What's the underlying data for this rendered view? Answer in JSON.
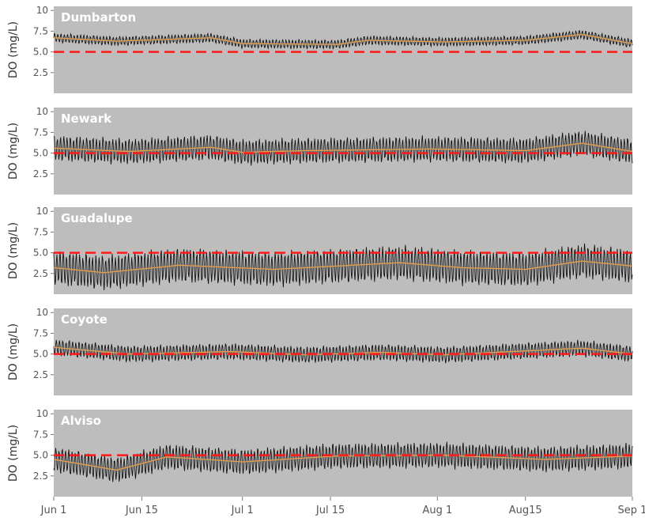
{
  "chart_data": {
    "type": "line",
    "shared_x": {
      "tick_labels": [
        "Jun 1",
        "Jun 15",
        "Jul 1",
        "Jul 15",
        "Aug 1",
        "Aug15",
        "Sep 1"
      ],
      "tick_days": [
        0,
        14,
        30,
        44,
        61,
        75,
        92
      ],
      "range_days": [
        0,
        92
      ]
    },
    "ylabel": "DO (mg/L)",
    "yticks": [
      "2.5",
      "5.0",
      "7.5",
      "10"
    ],
    "ylim": [
      0,
      10.5
    ],
    "grid": false,
    "colors": {
      "panel_bg": "#bdbdbd",
      "raw_series": "#111111",
      "smoothed_series": "#e8a04a",
      "threshold": "#ff1a1a"
    },
    "panels": [
      {
        "title": "Dumbarton",
        "threshold": 5.0,
        "series_mean": [
          [
            0,
            6.7
          ],
          [
            10,
            6.3
          ],
          [
            25,
            6.7
          ],
          [
            30,
            6.0
          ],
          [
            45,
            5.9
          ],
          [
            50,
            6.4
          ],
          [
            62,
            6.2
          ],
          [
            75,
            6.4
          ],
          [
            84,
            7.1
          ],
          [
            92,
            6.0
          ]
        ],
        "amplitude": 0.5
      },
      {
        "title": "Newark",
        "threshold": 5.0,
        "series_mean": [
          [
            0,
            5.6
          ],
          [
            12,
            5.2
          ],
          [
            25,
            5.7
          ],
          [
            30,
            5.1
          ],
          [
            40,
            5.3
          ],
          [
            60,
            5.5
          ],
          [
            75,
            5.3
          ],
          [
            84,
            6.2
          ],
          [
            92,
            5.2
          ]
        ],
        "amplitude": 1.4
      },
      {
        "title": "Guadalupe",
        "threshold": 5.0,
        "series_mean": [
          [
            0,
            3.2
          ],
          [
            8,
            2.6
          ],
          [
            20,
            3.5
          ],
          [
            35,
            3.0
          ],
          [
            55,
            3.8
          ],
          [
            65,
            3.2
          ],
          [
            75,
            3.0
          ],
          [
            84,
            4.0
          ],
          [
            92,
            3.4
          ]
        ],
        "amplitude": 1.9
      },
      {
        "title": "Coyote",
        "threshold": 5.0,
        "series_mean": [
          [
            0,
            5.8
          ],
          [
            12,
            5.0
          ],
          [
            28,
            5.3
          ],
          [
            40,
            4.9
          ],
          [
            52,
            5.2
          ],
          [
            62,
            4.9
          ],
          [
            84,
            5.7
          ],
          [
            92,
            5.0
          ]
        ],
        "amplitude": 0.9
      },
      {
        "title": "Alviso",
        "threshold": 5.0,
        "series_mean": [
          [
            0,
            4.5
          ],
          [
            10,
            3.2
          ],
          [
            18,
            4.8
          ],
          [
            30,
            4.2
          ],
          [
            45,
            4.9
          ],
          [
            62,
            5.0
          ],
          [
            78,
            4.5
          ],
          [
            92,
            4.9
          ]
        ],
        "amplitude": 1.4
      }
    ]
  }
}
